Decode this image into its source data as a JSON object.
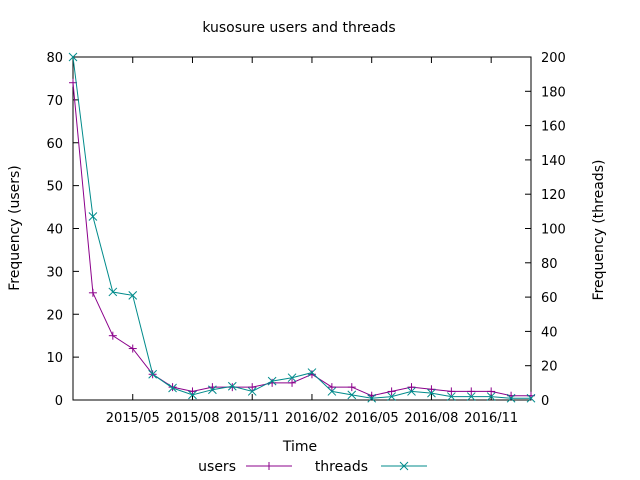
{
  "chart_data": {
    "type": "line",
    "title": "kusosure users and threads",
    "xlabel": "Time",
    "ylabel": "Frequency (users)",
    "y2label": "Frequency (threads)",
    "ylim": [
      0,
      80
    ],
    "y2lim": [
      0,
      200
    ],
    "yticks": [
      "0",
      "10",
      "20",
      "30",
      "40",
      "50",
      "60",
      "70",
      "80"
    ],
    "y2ticks": [
      "0",
      "20",
      "40",
      "60",
      "80",
      "100",
      "120",
      "140",
      "160",
      "180",
      "200"
    ],
    "xlim": [
      "2015-02",
      "2017-01"
    ],
    "xticks": [
      {
        "date": "2015-05",
        "label": "2015/05"
      },
      {
        "date": "2015-08",
        "label": "2015/08"
      },
      {
        "date": "2015-11",
        "label": "2015/11"
      },
      {
        "date": "2016-02",
        "label": "2016/02"
      },
      {
        "date": "2016-05",
        "label": "2016/05"
      },
      {
        "date": "2016-08",
        "label": "2016/08"
      },
      {
        "date": "2016-11",
        "label": "2016/11"
      }
    ],
    "legend_position": "bottom",
    "grid": false,
    "x": [
      "2015-02",
      "2015-03",
      "2015-04",
      "2015-05",
      "2015-06",
      "2015-07",
      "2015-08",
      "2015-09",
      "2015-10",
      "2015-11",
      "2015-12",
      "2016-01",
      "2016-02",
      "2016-03",
      "2016-04",
      "2016-05",
      "2016-06",
      "2016-07",
      "2016-08",
      "2016-09",
      "2016-10",
      "2016-11",
      "2016-12",
      "2017-01"
    ],
    "series": [
      {
        "name": "users",
        "axis": "y",
        "color": "#8b008b",
        "marker": "plus",
        "values": [
          74,
          25,
          15,
          12,
          6,
          3,
          2,
          3,
          3,
          3,
          4,
          4,
          6,
          3,
          3,
          1,
          2,
          3,
          2.5,
          2,
          2,
          2,
          1,
          1
        ]
      },
      {
        "name": "threads",
        "axis": "y2",
        "color": "#008b8b",
        "marker": "cross",
        "values": [
          200,
          107,
          63,
          61,
          15,
          7,
          3,
          6,
          8,
          5,
          11,
          13,
          16,
          5,
          3,
          1,
          2,
          5,
          4,
          2,
          2,
          2,
          1,
          1
        ]
      }
    ]
  }
}
